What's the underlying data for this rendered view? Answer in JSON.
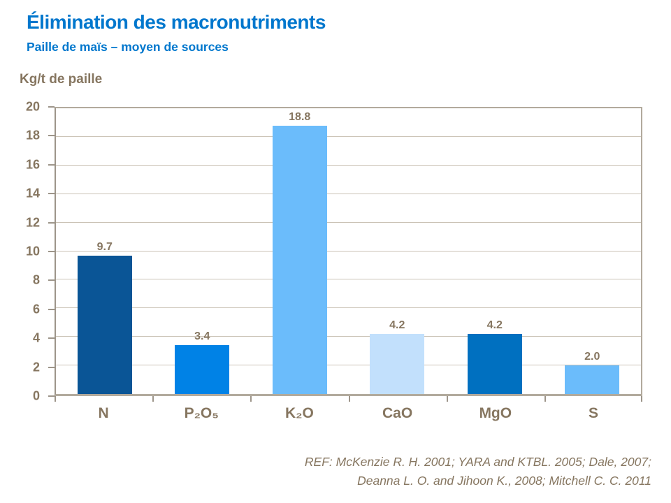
{
  "header": {
    "title": "Élimination des macronutriments",
    "subtitle": "Paille  de maïs – moyen de sources",
    "title_color": "#0077CD"
  },
  "chart_data": {
    "type": "bar",
    "title": "Élimination des macronutriments",
    "subtitle": "Paille de maïs – moyen de sources",
    "ylabel": "Kg/t de paille",
    "xlabel": "",
    "categories": [
      "N",
      "P₂O₅",
      "K₂O",
      "CaO",
      "MgO",
      "S"
    ],
    "values": [
      9.7,
      3.4,
      18.8,
      4.2,
      4.2,
      2.0
    ],
    "value_labels": [
      "9.7",
      "3.4",
      "18.8",
      "4.2",
      "4.2",
      "2.0"
    ],
    "bar_colors": [
      "#0A5596",
      "#0082E6",
      "#6BBCFB",
      "#C2E0FC",
      "#0070C0",
      "#6BBCFB"
    ],
    "ylim": [
      0,
      20
    ],
    "yticks": [
      0,
      2,
      4,
      6,
      8,
      10,
      12,
      14,
      16,
      18,
      20
    ],
    "grid": true,
    "legend": "none",
    "text_color": "#867660",
    "gridline_color": "#CBC3B6"
  },
  "footer": {
    "lines": [
      "REF: McKenzie R. H. 2001; YARA and KTBL. 2005; Dale, 2007;",
      "Deanna L. O. and Jihoon K.,  2008; Mitchell C. C. 2011"
    ]
  }
}
